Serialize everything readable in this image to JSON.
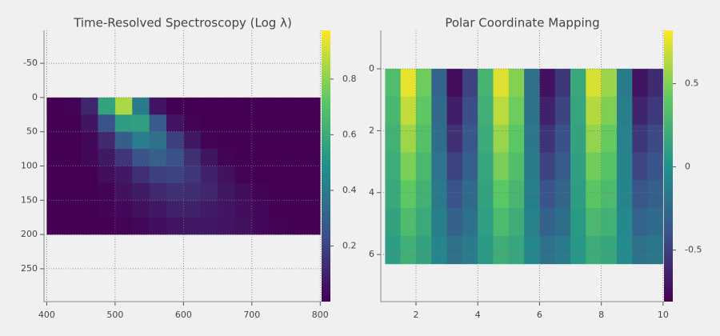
{
  "chart_data": [
    {
      "type": "heatmap",
      "title": "Time-Resolved Spectroscopy (Log λ)",
      "colormap": "viridis",
      "grid": true,
      "invert_y": true,
      "xlim": [
        396,
        802
      ],
      "ylim": [
        -98,
        298
      ],
      "xticks": [
        400,
        500,
        600,
        700,
        800
      ],
      "yticks": [
        -50,
        0,
        50,
        100,
        150,
        200,
        250
      ],
      "clim": [
        0,
        0.975
      ],
      "cticks": [
        0.2,
        0.4,
        0.6,
        0.8
      ],
      "x_edges": [
        400,
        425,
        450,
        475,
        500,
        525,
        550,
        575,
        600,
        625,
        650,
        675,
        700,
        725,
        750,
        775,
        800
      ],
      "y_edges": [
        0,
        25,
        50,
        75,
        100,
        125,
        150,
        175,
        200
      ],
      "z": [
        [
          0,
          0.01,
          0.11,
          0.56,
          0.85,
          0.4,
          0.06,
          0,
          0,
          0,
          0,
          0,
          0,
          0,
          0,
          0
        ],
        [
          0,
          0,
          0.06,
          0.25,
          0.54,
          0.55,
          0.28,
          0.06,
          0.01,
          0,
          0,
          0,
          0,
          0,
          0,
          0
        ],
        [
          0,
          0,
          0.02,
          0.12,
          0.29,
          0.41,
          0.36,
          0.19,
          0.07,
          0.01,
          0,
          0,
          0,
          0,
          0,
          0
        ],
        [
          0,
          0,
          0.02,
          0.07,
          0.16,
          0.25,
          0.3,
          0.24,
          0.14,
          0.06,
          0.01,
          0,
          0,
          0,
          0,
          0
        ],
        [
          0,
          0,
          0,
          0.04,
          0.07,
          0.14,
          0.19,
          0.2,
          0.16,
          0.1,
          0.05,
          0.01,
          0,
          0,
          0,
          0
        ],
        [
          0,
          0,
          0,
          0.01,
          0.05,
          0.08,
          0.12,
          0.14,
          0.13,
          0.11,
          0.07,
          0.04,
          0.01,
          0,
          0,
          0
        ],
        [
          0,
          0,
          0,
          0.01,
          0.02,
          0.05,
          0.07,
          0.1,
          0.1,
          0.08,
          0.06,
          0.04,
          0.02,
          0,
          0,
          0
        ],
        [
          0,
          0,
          0,
          0,
          0.01,
          0.02,
          0.04,
          0.06,
          0.07,
          0.07,
          0.06,
          0.05,
          0.02,
          0.01,
          0,
          0
        ]
      ]
    },
    {
      "type": "heatmap",
      "title": "Polar Coordinate Mapping",
      "colormap": "viridis",
      "grid": true,
      "invert_y": true,
      "xlim": [
        0.86,
        10.03
      ],
      "ylim": [
        -1.24,
        7.52
      ],
      "xticks": [
        2,
        4,
        6,
        8,
        10
      ],
      "yticks": [
        0,
        2,
        4,
        6
      ],
      "clim": [
        -0.81,
        0.82
      ],
      "cticks": [
        -0.5,
        0,
        0.5
      ],
      "x_edges": [
        1,
        1.5,
        2,
        2.5,
        3,
        3.5,
        4,
        4.5,
        5,
        5.5,
        6,
        6.5,
        7,
        7.5,
        8,
        8.5,
        9,
        9.5,
        10
      ],
      "y_edges": [
        0,
        0.9,
        1.8,
        2.7,
        3.6,
        4.5,
        5.4,
        6.3
      ],
      "z": [
        [
          0.32,
          0.76,
          0.45,
          -0.29,
          -0.75,
          -0.48,
          0.25,
          0.74,
          0.51,
          -0.21,
          -0.73,
          -0.54,
          0.17,
          0.72,
          0.57,
          -0.14,
          -0.71,
          -0.6
        ],
        [
          0.28,
          0.67,
          0.4,
          -0.25,
          -0.66,
          -0.43,
          0.22,
          0.65,
          0.45,
          -0.19,
          -0.65,
          -0.47,
          0.15,
          0.63,
          0.5,
          -0.12,
          -0.63,
          -0.53
        ],
        [
          0.24,
          0.58,
          0.35,
          -0.22,
          -0.57,
          -0.37,
          0.19,
          0.56,
          0.39,
          -0.16,
          -0.56,
          -0.41,
          0.13,
          0.55,
          0.43,
          -0.1,
          -0.54,
          -0.45
        ],
        [
          0.2,
          0.49,
          0.29,
          -0.18,
          -0.48,
          -0.31,
          0.16,
          0.48,
          0.33,
          -0.14,
          -0.47,
          -0.34,
          0.11,
          0.46,
          0.36,
          -0.09,
          -0.46,
          -0.38
        ],
        [
          0.17,
          0.4,
          0.24,
          -0.15,
          -0.39,
          -0.25,
          0.13,
          0.39,
          0.27,
          -0.11,
          -0.38,
          -0.28,
          0.09,
          0.38,
          0.3,
          -0.07,
          -0.37,
          -0.31
        ],
        [
          0.13,
          0.31,
          0.18,
          -0.12,
          -0.3,
          -0.2,
          0.1,
          0.3,
          0.21,
          -0.09,
          -0.3,
          -0.22,
          0.07,
          0.29,
          0.23,
          -0.05,
          -0.29,
          -0.24
        ],
        [
          0.09,
          0.22,
          0.13,
          -0.08,
          -0.21,
          -0.14,
          0.07,
          0.21,
          0.15,
          -0.06,
          -0.21,
          -0.15,
          0.05,
          0.2,
          0.16,
          -0.04,
          -0.2,
          -0.17
        ]
      ]
    }
  ]
}
